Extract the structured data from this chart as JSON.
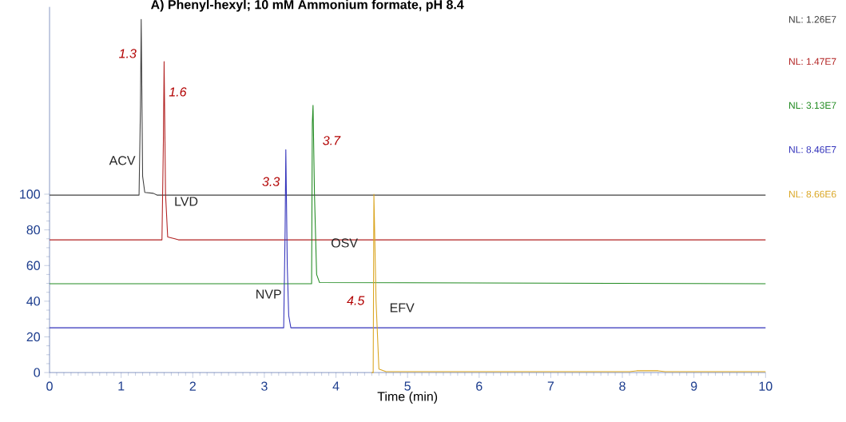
{
  "chart_data": {
    "type": "line",
    "title": "A) Phenyl-hexyl; 10 mM Ammonium formate, pH 8.4",
    "xlabel": "Time (min)",
    "xlim": [
      0,
      10
    ],
    "ylim": [
      0,
      205
    ],
    "xticks": [
      0,
      1,
      2,
      3,
      4,
      5,
      6,
      7,
      8,
      9,
      10
    ],
    "yticks": [
      0,
      20,
      40,
      60,
      80,
      100
    ],
    "grid": false,
    "marker": "none",
    "line_style": "solid",
    "series": [
      {
        "name": "NL: 1.26E7",
        "color": "#404040",
        "x": [
          0,
          1.25,
          1.27,
          1.28,
          1.3,
          1.33,
          1.45,
          1.5,
          10
        ],
        "values": [
          99.5,
          99.5,
          150,
          198,
          110,
          101,
          100.5,
          99.5,
          99.5
        ]
      },
      {
        "name": "NL: 1.47E7",
        "color": "#b22222",
        "x": [
          0,
          1.57,
          1.59,
          1.6,
          1.62,
          1.65,
          1.75,
          1.8,
          10
        ],
        "values": [
          74.4,
          74.4,
          130,
          174.4,
          100,
          76,
          75,
          74.4,
          74.4
        ]
      },
      {
        "name": "NL: 3.13E7",
        "color": "#228b22",
        "x": [
          0,
          3.66,
          3.67,
          3.68,
          3.7,
          3.73,
          3.77,
          10
        ],
        "values": [
          49.8,
          49.8,
          140,
          149.8,
          100,
          55,
          50.5,
          49.8
        ]
      },
      {
        "name": "NL: 8.46E7",
        "color": "#3333bb",
        "x": [
          0,
          3.27,
          3.29,
          3.3,
          3.32,
          3.34,
          3.37,
          10
        ],
        "values": [
          25.1,
          25.1,
          80,
          125,
          60,
          32,
          25.1,
          25.1
        ]
      },
      {
        "name": "NL: 8.66E6",
        "color": "#daa520",
        "x": [
          4.5,
          4.52,
          4.53,
          4.56,
          4.6,
          4.7,
          8.1,
          8.2,
          8.5,
          8.6,
          10
        ],
        "values": [
          0,
          0,
          100,
          40,
          2,
          0.5,
          0.5,
          1,
          1,
          0.5,
          0.5
        ]
      }
    ],
    "annotations": [
      {
        "text": "1.3",
        "x": 1.28,
        "y": 198
      },
      {
        "text": "1.6",
        "x": 1.6,
        "y": 174.4
      },
      {
        "text": "3.7",
        "x": 3.68,
        "y": 149.8
      },
      {
        "text": "3.3",
        "x": 3.3,
        "y": 125
      },
      "4.5",
      "ACV",
      "LVD",
      "OSV",
      "NVP",
      "EFV"
    ]
  }
}
